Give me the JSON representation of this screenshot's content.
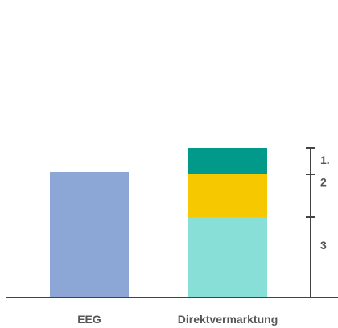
{
  "chart_data": {
    "type": "bar",
    "stacked": true,
    "categories": [
      "EEG",
      "Direktvermarktung"
    ],
    "series": [
      {
        "values": [
          0,
          100
        ],
        "color": "#88dfd8"
      },
      {
        "values": [
          0,
          53
        ],
        "color": "#f5c800"
      },
      {
        "values": [
          0,
          33
        ],
        "color": "#00998a"
      },
      {
        "values": [
          156,
          0
        ],
        "color": "#8ca6d6"
      }
    ],
    "bracket_labels": [
      "1.",
      "2",
      "3"
    ],
    "axis_color": "#444444",
    "grid": false
  }
}
